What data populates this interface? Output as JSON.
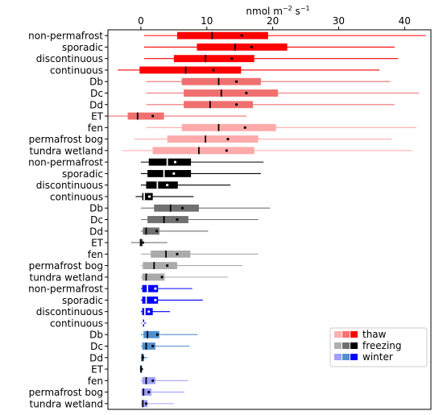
{
  "chart_data": {
    "type": "boxplot",
    "title": "",
    "xlabel": "",
    "x_unit_label": {
      "base": "nmol m",
      "exp1": "−2",
      "mid": " s",
      "exp2": "−1"
    },
    "xlim": [
      -5,
      44
    ],
    "xticks": [
      0,
      10,
      20,
      30,
      40
    ],
    "legend": {
      "placement": "lower-right",
      "entries": [
        {
          "label": "thaw",
          "colors": [
            "#ffb0b0",
            "#ff7070",
            "#ff0000"
          ]
        },
        {
          "label": "freezing",
          "colors": [
            "#b0b0b0",
            "#707070",
            "#000000"
          ]
        },
        {
          "label": "winter",
          "colors": [
            "#a0a0ff",
            "#5090d0",
            "#0000ff"
          ]
        }
      ]
    },
    "rows": [
      {
        "label": "non-permafrost",
        "color": "#ff0000",
        "whisker_color": "#ff0000",
        "median_color": "#000000",
        "mean_color": "#000000",
        "whislo": 0.5,
        "q1": 5.5,
        "median": 10.8,
        "q3": 19.3,
        "whishi": 43.2,
        "mean": 15.3
      },
      {
        "label": "sporadic",
        "color": "#ff0000",
        "whisker_color": "#ff0000",
        "median_color": "#000000",
        "mean_color": "#000000",
        "whislo": 0.5,
        "q1": 8.5,
        "median": 14.3,
        "q3": 22.2,
        "whishi": 38.5,
        "mean": 16.8
      },
      {
        "label": "discontinuous",
        "color": "#ff0000",
        "whisker_color": "#ff0000",
        "median_color": "#000000",
        "mean_color": "#000000",
        "whislo": 0.5,
        "q1": 5.0,
        "median": 9.8,
        "q3": 17.2,
        "whishi": 39.0,
        "mean": 13.8
      },
      {
        "label": "continuous",
        "color": "#ff0000",
        "whisker_color": "#ff0000",
        "median_color": "#000000",
        "mean_color": "#000000",
        "whislo": -3.5,
        "q1": -0.2,
        "median": 6.8,
        "q3": 15.2,
        "whishi": 36.2,
        "mean": 11.0
      },
      {
        "label": "Db",
        "color": "#f07070",
        "whisker_color": "#f07070",
        "median_color": "#000000",
        "mean_color": "#000000",
        "whislo": 0.8,
        "q1": 6.2,
        "median": 11.8,
        "q3": 18.2,
        "whishi": 37.8,
        "mean": 14.5
      },
      {
        "label": "Dc",
        "color": "#f07070",
        "whisker_color": "#f07070",
        "median_color": "#000000",
        "mean_color": "#000000",
        "whislo": 0.8,
        "q1": 6.5,
        "median": 12.2,
        "q3": 20.8,
        "whishi": 42.2,
        "mean": 16.0
      },
      {
        "label": "Dd",
        "color": "#f07070",
        "whisker_color": "#f07070",
        "median_color": "#000000",
        "mean_color": "#000000",
        "whislo": 0.8,
        "q1": 6.5,
        "median": 10.5,
        "q3": 17.0,
        "whishi": 38.5,
        "mean": 14.5
      },
      {
        "label": "ET",
        "color": "#f07070",
        "whisker_color": "#f07070",
        "median_color": "#000000",
        "mean_color": "#000000",
        "whislo": -5.0,
        "q1": -2.0,
        "median": -0.5,
        "q3": 3.5,
        "whishi": 16.0,
        "mean": 1.8
      },
      {
        "label": "fen",
        "color": "#ffaaaa",
        "whisker_color": "#ffaaaa",
        "median_color": "#000000",
        "mean_color": "#000000",
        "whislo": 0.8,
        "q1": 6.2,
        "median": 11.8,
        "q3": 20.5,
        "whishi": 41.8,
        "mean": 15.8
      },
      {
        "label": "permafrost bog",
        "color": "#ffaaaa",
        "whisker_color": "#ffaaaa",
        "median_color": "#000000",
        "mean_color": "#000000",
        "whislo": -1.0,
        "q1": 4.0,
        "median": 9.8,
        "q3": 17.8,
        "whishi": 38.0,
        "mean": 13.2
      },
      {
        "label": "tundra wetland",
        "color": "#ffaaaa",
        "whisker_color": "#ffaaaa",
        "median_color": "#000000",
        "mean_color": "#000000",
        "whislo": -2.8,
        "q1": 1.8,
        "median": 8.8,
        "q3": 17.2,
        "whishi": 41.2,
        "mean": 13.0
      },
      {
        "label": "non-permafrost",
        "color": "#000000",
        "whisker_color": "#000000",
        "median_color": "#ffffff",
        "mean_color": "#ffffff",
        "whislo": 0.0,
        "q1": 1.2,
        "median": 4.0,
        "q3": 7.6,
        "whishi": 18.6,
        "mean": 5.2
      },
      {
        "label": "sporadic",
        "color": "#000000",
        "whisker_color": "#000000",
        "median_color": "#ffffff",
        "mean_color": "#ffffff",
        "whislo": 0.0,
        "q1": 1.0,
        "median": 3.5,
        "q3": 7.6,
        "whishi": 18.2,
        "mean": 5.0
      },
      {
        "label": "discontinuous",
        "color": "#000000",
        "whisker_color": "#000000",
        "median_color": "#ffffff",
        "mean_color": "#ffffff",
        "whislo": 0.0,
        "q1": 0.8,
        "median": 2.5,
        "q3": 5.6,
        "whishi": 13.6,
        "mean": 4.0
      },
      {
        "label": "continuous",
        "color": "#000000",
        "whisker_color": "#000000",
        "median_color": "#ffffff",
        "mean_color": "#ffffff",
        "whislo": -0.8,
        "q1": 0.2,
        "median": 0.5,
        "q3": 1.8,
        "whishi": 8.0,
        "mean": 1.3
      },
      {
        "label": "Db",
        "color": "#707070",
        "whisker_color": "#707070",
        "median_color": "#000000",
        "mean_color": "#000000",
        "whislo": 0.0,
        "q1": 2.0,
        "median": 4.5,
        "q3": 8.8,
        "whishi": 19.6,
        "mean": 6.3
      },
      {
        "label": "Dc",
        "color": "#707070",
        "whisker_color": "#707070",
        "median_color": "#000000",
        "mean_color": "#000000",
        "whislo": 0.0,
        "q1": 1.0,
        "median": 3.5,
        "q3": 7.2,
        "whishi": 17.8,
        "mean": 5.5
      },
      {
        "label": "Dd",
        "color": "#707070",
        "whisker_color": "#707070",
        "median_color": "#000000",
        "mean_color": "#000000",
        "whislo": 0.0,
        "q1": 0.3,
        "median": 0.8,
        "q3": 2.8,
        "whishi": 10.2,
        "mean": 2.4
      },
      {
        "label": "ET",
        "color": "#707070",
        "whisker_color": "#707070",
        "median_color": "#000000",
        "mean_color": "#000000",
        "whislo": -1.5,
        "q1": -0.2,
        "median": 0.0,
        "q3": 0.3,
        "whishi": 4.0,
        "mean": 0.3
      },
      {
        "label": "fen",
        "color": "#aaaaaa",
        "whisker_color": "#aaaaaa",
        "median_color": "#000000",
        "mean_color": "#000000",
        "whislo": 0.0,
        "q1": 1.5,
        "median": 3.8,
        "q3": 7.5,
        "whishi": 17.8,
        "mean": 5.5
      },
      {
        "label": "permafrost bog",
        "color": "#aaaaaa",
        "whisker_color": "#aaaaaa",
        "median_color": "#000000",
        "mean_color": "#000000",
        "whislo": 0.0,
        "q1": 0.3,
        "median": 2.0,
        "q3": 5.5,
        "whishi": 15.4,
        "mean": 4.0
      },
      {
        "label": "tundra wetland",
        "color": "#aaaaaa",
        "whisker_color": "#aaaaaa",
        "median_color": "#000000",
        "mean_color": "#000000",
        "whislo": 0.0,
        "q1": 0.2,
        "median": 0.8,
        "q3": 3.6,
        "whishi": 13.2,
        "mean": 3.2
      },
      {
        "label": "non-permafrost",
        "color": "#0000ff",
        "whisker_color": "#0000ff",
        "median_color": "#ffffff",
        "mean_color": "#ffffff",
        "whislo": 0.0,
        "q1": 0.2,
        "median": 1.0,
        "q3": 2.6,
        "whishi": 7.8,
        "mean": 2.2
      },
      {
        "label": "sporadic",
        "color": "#0000ff",
        "whisker_color": "#0000ff",
        "median_color": "#ffffff",
        "mean_color": "#ffffff",
        "whislo": 0.0,
        "q1": 0.2,
        "median": 0.8,
        "q3": 2.6,
        "whishi": 9.4,
        "mean": 2.2
      },
      {
        "label": "discontinuous",
        "color": "#0000ff",
        "whisker_color": "#0000ff",
        "median_color": "#ffffff",
        "mean_color": "#ffffff",
        "whislo": 0.0,
        "q1": 0.2,
        "median": 0.6,
        "q3": 1.8,
        "whishi": 4.4,
        "mean": 1.2
      },
      {
        "label": "continuous",
        "color": "#0000ff",
        "whisker_color": "#0000ff",
        "median_color": "#ffffff",
        "mean_color": "#ffffff",
        "whislo": 0.0,
        "q1": 0.1,
        "median": 0.2,
        "q3": 0.5,
        "whishi": 0.8,
        "mean": 0.3
      },
      {
        "label": "Db",
        "color": "#5090d0",
        "whisker_color": "#5090d0",
        "median_color": "#000000",
        "mean_color": "#000000",
        "whislo": 0.0,
        "q1": 0.4,
        "median": 1.0,
        "q3": 2.8,
        "whishi": 8.6,
        "mean": 2.5
      },
      {
        "label": "Dc",
        "color": "#5090d0",
        "whisker_color": "#5090d0",
        "median_color": "#000000",
        "mean_color": "#000000",
        "whislo": 0.0,
        "q1": 0.2,
        "median": 0.8,
        "q3": 2.2,
        "whishi": 7.4,
        "mean": 1.8
      },
      {
        "label": "Dd",
        "color": "#5090d0",
        "whisker_color": "#5090d0",
        "median_color": "#000000",
        "mean_color": "#000000",
        "whislo": 0.0,
        "q1": 0.1,
        "median": 0.2,
        "q3": 0.5,
        "whishi": 1.0,
        "mean": 0.3
      },
      {
        "label": "ET",
        "color": "#5090d0",
        "whisker_color": "#5090d0",
        "median_color": "#000000",
        "mean_color": "#000000",
        "whislo": -0.2,
        "q1": 0.0,
        "median": 0.0,
        "q3": 0.1,
        "whishi": 0.4,
        "mean": 0.1
      },
      {
        "label": "fen",
        "color": "#a0a0ff",
        "whisker_color": "#a0a0ff",
        "median_color": "#000000",
        "mean_color": "#000000",
        "whislo": 0.0,
        "q1": 0.2,
        "median": 0.8,
        "q3": 2.2,
        "whishi": 7.2,
        "mean": 1.8
      },
      {
        "label": "permafrost bog",
        "color": "#a0a0ff",
        "whisker_color": "#a0a0ff",
        "median_color": "#000000",
        "mean_color": "#000000",
        "whislo": 0.0,
        "q1": 0.1,
        "median": 0.4,
        "q3": 1.6,
        "whishi": 6.6,
        "mean": 1.2
      },
      {
        "label": "tundra wetland",
        "color": "#a0a0ff",
        "whisker_color": "#a0a0ff",
        "median_color": "#000000",
        "mean_color": "#000000",
        "whislo": 0.0,
        "q1": 0.1,
        "median": 0.3,
        "q3": 1.0,
        "whishi": 5.0,
        "mean": 0.8
      }
    ]
  }
}
